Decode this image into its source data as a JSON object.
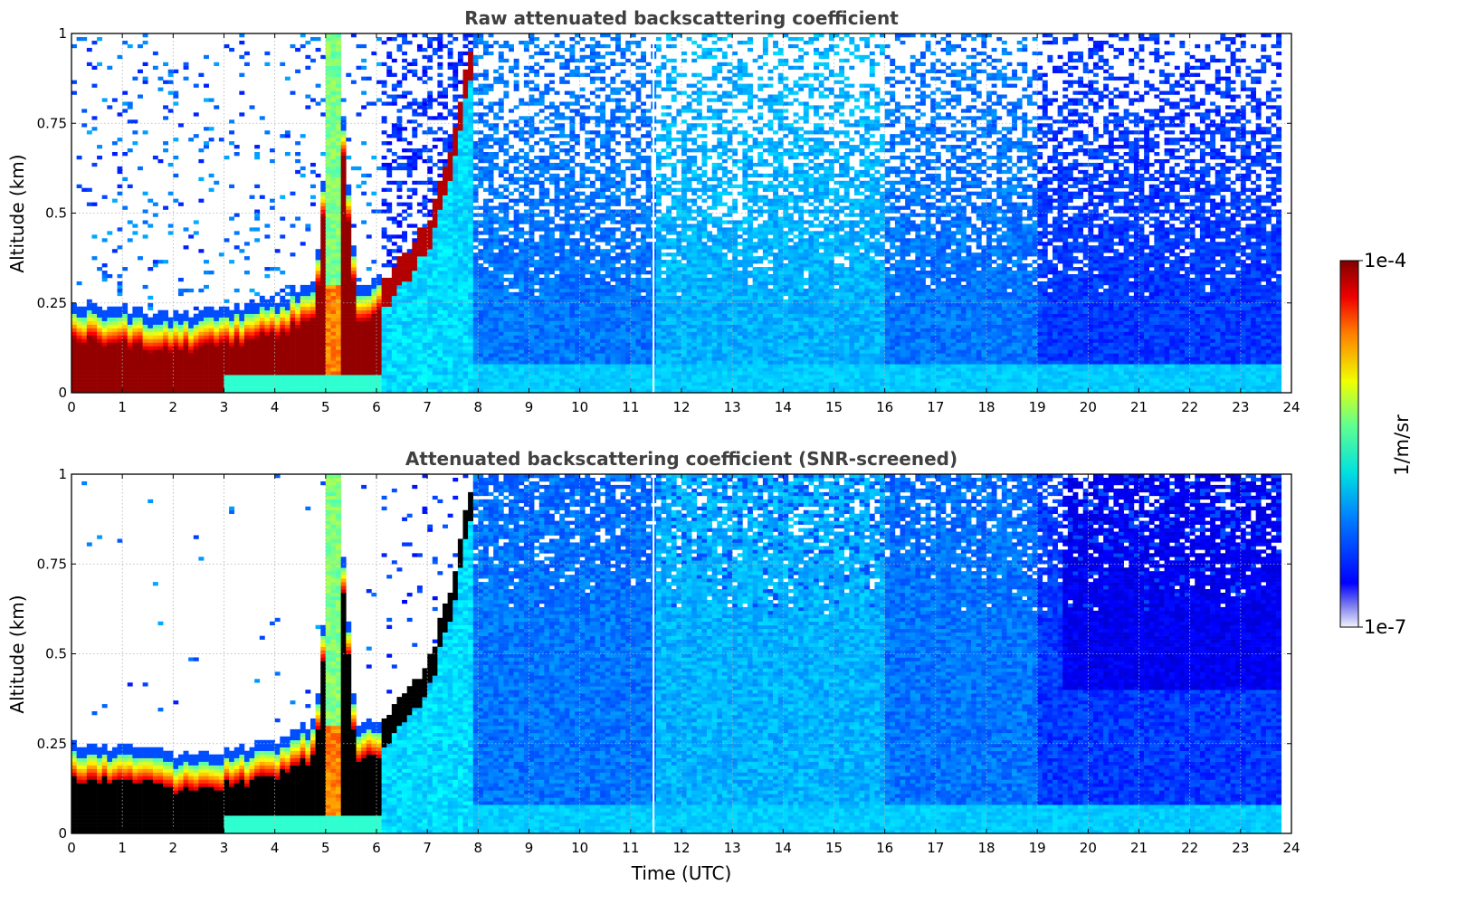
{
  "chart_data": [
    {
      "type": "heatmap",
      "title": "Raw attenuated backscattering coefficient",
      "xlabel": "",
      "ylabel": "Altitude (km)",
      "xlim": [
        0,
        24
      ],
      "ylim": [
        0,
        1
      ],
      "x_ticks": [
        "0",
        "1",
        "2",
        "3",
        "4",
        "5",
        "6",
        "7",
        "8",
        "9",
        "10",
        "11",
        "12",
        "13",
        "14",
        "15",
        "16",
        "17",
        "18",
        "19",
        "20",
        "21",
        "22",
        "23",
        "24"
      ],
      "y_ticks": [
        "0",
        "0.25",
        "0.5",
        "0.75",
        "1"
      ],
      "grid": true,
      "layer_top_km": [
        {
          "time": 0,
          "altitude": 0.22
        },
        {
          "time": 1,
          "altitude": 0.21
        },
        {
          "time": 2,
          "altitude": 0.19
        },
        {
          "time": 3,
          "altitude": 0.2
        },
        {
          "time": 4,
          "altitude": 0.23
        },
        {
          "time": 4.8,
          "altitude": 0.28
        },
        {
          "time": 5.2,
          "altitude": 1.0
        },
        {
          "time": 5.6,
          "altitude": 0.28
        },
        {
          "time": 6,
          "altitude": 0.28
        },
        {
          "time": 6.5,
          "altitude": 0.38
        },
        {
          "time": 7,
          "altitude": 0.47
        },
        {
          "time": 7.5,
          "altitude": 0.7
        },
        {
          "time": 7.8,
          "altitude": 0.95
        }
      ]
    },
    {
      "type": "heatmap",
      "title": "Attenuated backscattering coefficient (SNR-screened)",
      "xlabel": "Time (UTC)",
      "ylabel": "Altitude (km)",
      "xlim": [
        0,
        24
      ],
      "ylim": [
        0,
        1
      ],
      "x_ticks": [
        "0",
        "1",
        "2",
        "3",
        "4",
        "5",
        "6",
        "7",
        "8",
        "9",
        "10",
        "11",
        "12",
        "13",
        "14",
        "15",
        "16",
        "17",
        "18",
        "19",
        "20",
        "21",
        "22",
        "23",
        "24"
      ],
      "y_ticks": [
        "0",
        "0.25",
        "0.5",
        "0.75",
        "1"
      ],
      "grid": true
    }
  ],
  "colorbar": {
    "max_label": "1e-4",
    "min_label": "1e-7",
    "unit": "1/m/sr",
    "colormap": "jet"
  },
  "colors": {
    "title": "#404040",
    "grid": "#b0b0b0"
  }
}
